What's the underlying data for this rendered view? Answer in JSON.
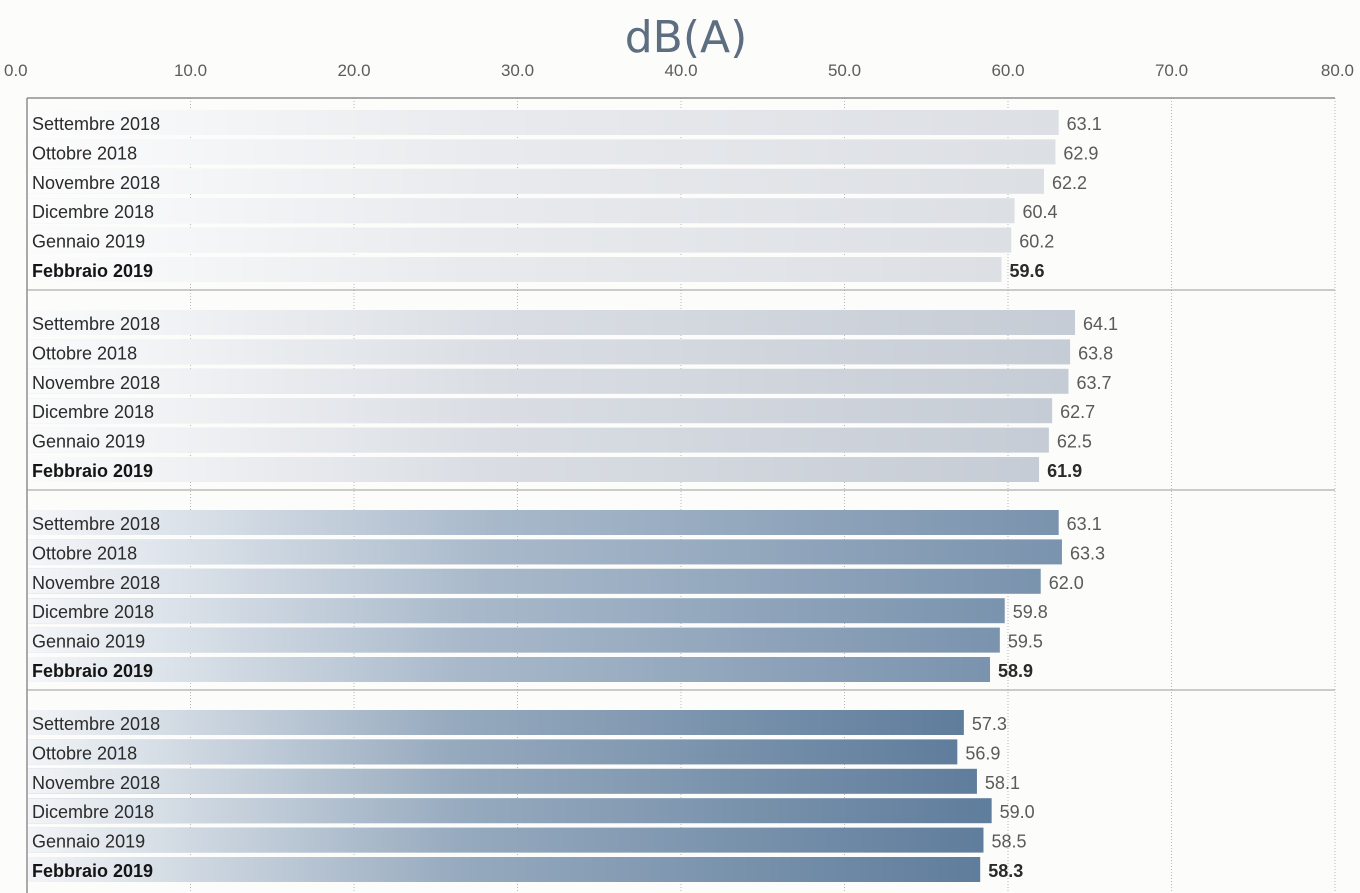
{
  "chart_data": {
    "type": "bar",
    "orientation": "horizontal",
    "title": "dB(A)",
    "xlabel": "",
    "ylabel": "",
    "xlim": [
      0,
      80
    ],
    "x_ticks": [
      "0.0",
      "10.0",
      "20.0",
      "30.0",
      "40.0",
      "50.0",
      "60.0",
      "70.0",
      "80.0"
    ],
    "grid": true,
    "legend": "none",
    "groups": [
      {
        "color": "#dcdfe4",
        "categories": [
          "Settembre 2018",
          "Ottobre 2018",
          "Novembre 2018",
          "Dicembre 2018",
          "Gennaio 2019",
          "Febbraio 2019"
        ],
        "values": [
          63.1,
          62.9,
          62.2,
          60.4,
          60.2,
          59.6
        ],
        "value_labels": [
          "63.1",
          "62.9",
          "62.2",
          "60.4",
          "60.2",
          "59.6"
        ],
        "highlight_index": 5
      },
      {
        "color": "#c6ccd5",
        "categories": [
          "Settembre 2018",
          "Ottobre 2018",
          "Novembre 2018",
          "Dicembre 2018",
          "Gennaio 2019",
          "Febbraio 2019"
        ],
        "values": [
          64.1,
          63.8,
          63.7,
          62.7,
          62.5,
          61.9
        ],
        "value_labels": [
          "64.1",
          "63.8",
          "63.7",
          "62.7",
          "62.5",
          "61.9"
        ],
        "highlight_index": 5
      },
      {
        "color": "#7a93ae",
        "categories": [
          "Settembre 2018",
          "Ottobre 2018",
          "Novembre 2018",
          "Dicembre 2018",
          "Gennaio 2019",
          "Febbraio 2019"
        ],
        "values": [
          63.1,
          63.3,
          62.0,
          59.8,
          59.5,
          58.9
        ],
        "value_labels": [
          "63.1",
          "63.3",
          "62.0",
          "59.8",
          "59.5",
          "58.9"
        ],
        "highlight_index": 5
      },
      {
        "color": "#5f7d9c",
        "categories": [
          "Settembre 2018",
          "Ottobre 2018",
          "Novembre 2018",
          "Dicembre 2018",
          "Gennaio 2019",
          "Febbraio 2019"
        ],
        "values": [
          57.3,
          56.9,
          58.1,
          59.0,
          58.5,
          58.3
        ],
        "value_labels": [
          "57.3",
          "56.9",
          "58.1",
          "59.0",
          "58.5",
          "58.3"
        ],
        "highlight_index": 5
      }
    ]
  }
}
